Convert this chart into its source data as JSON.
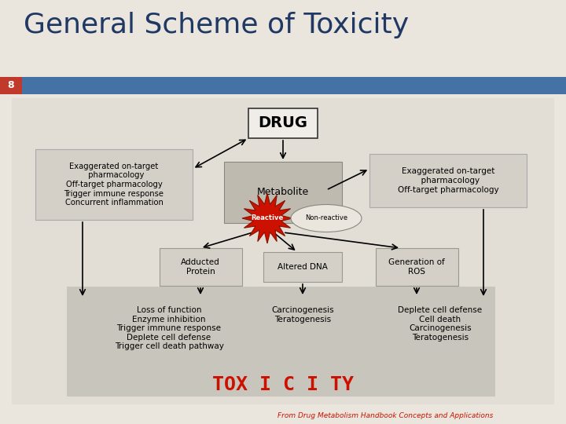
{
  "title": "General Scheme of Toxicity",
  "title_color": "#1F3864",
  "bg_color": "#EAE6DE",
  "slide_num": "8",
  "slide_num_bg": "#C0392B",
  "header_bar_color": "#4472A4",
  "content_bg": "#E2DED6",
  "toxicity_bg": "#C8C5BC",
  "drug_text": "DRUG",
  "left_box_text": "Exaggerated on-target\n  pharmacology\nOff-target pharmacology\nTrigger immune response\nConcurrent inflammation",
  "right_box_text": "Exaggerated on-target\n  pharmacology\nOff-target pharmacology",
  "metabolite_text": "Metabolite",
  "reactive_text": "Reactive",
  "nonreactive_text": "Non-reactive",
  "adducted_text": "Adducted\nProtein",
  "altered_text": "Altered DNA",
  "ros_text": "Generation of\nROS",
  "loss_text": "Loss of function\nEnzyme inhibition\nTrigger immune response\nDeplete cell defense\nTrigger cell death pathway",
  "carcino_text": "Carcinogenesis\nTeratogenesis",
  "deplete_text": "Deplete cell defense\nCell death\nCarcinogenesis\nTeratogenesis",
  "toxicity_display": "TOX I C I TY",
  "footer": "From Drug Metabolism Handbook Concepts and Applications"
}
